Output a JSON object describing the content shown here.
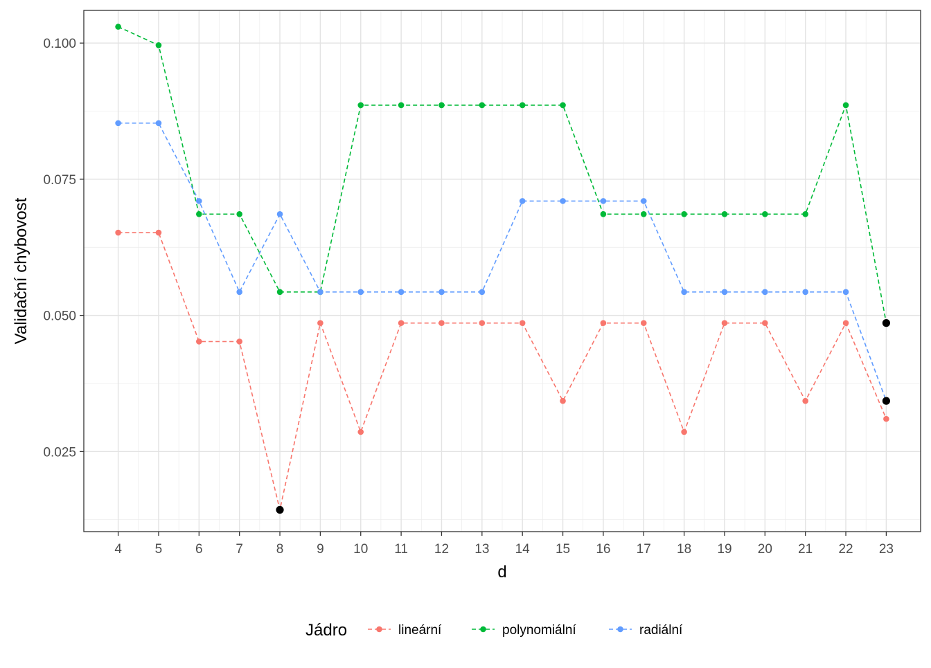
{
  "chart_data": {
    "type": "line",
    "title": "",
    "xlabel": "d",
    "ylabel": "Validační chybovost",
    "x": [
      4,
      5,
      6,
      7,
      8,
      9,
      10,
      11,
      12,
      13,
      14,
      15,
      16,
      17,
      18,
      19,
      20,
      21,
      22,
      23
    ],
    "xlim": [
      3.15,
      23.85
    ],
    "ylim": [
      0.0103,
      0.106
    ],
    "y_ticks": [
      0.025,
      0.05,
      0.075,
      0.1
    ],
    "y_tick_labels": [
      "0.025",
      "0.050",
      "0.075",
      "0.100"
    ],
    "grid": true,
    "legend_position": "bottom",
    "legend_title": "Jádro",
    "series": [
      {
        "name": "lineární",
        "color": "#F8766D",
        "values": [
          0.0652,
          0.0652,
          0.0452,
          0.0452,
          0.0143,
          0.0486,
          0.0286,
          0.0486,
          0.0486,
          0.0486,
          0.0486,
          0.0343,
          0.0486,
          0.0486,
          0.0286,
          0.0486,
          0.0486,
          0.0343,
          0.0486,
          0.031
        ]
      },
      {
        "name": "polynomiální",
        "color": "#00BA38",
        "values": [
          0.103,
          0.0996,
          0.0686,
          0.0686,
          0.0543,
          0.0543,
          0.0886,
          0.0886,
          0.0886,
          0.0886,
          0.0886,
          0.0886,
          0.0686,
          0.0686,
          0.0686,
          0.0686,
          0.0686,
          0.0686,
          0.0886,
          0.0486
        ]
      },
      {
        "name": "radiální",
        "color": "#619CFF",
        "values": [
          0.0853,
          0.0853,
          0.071,
          0.0543,
          0.0686,
          0.0543,
          0.0543,
          0.0543,
          0.0543,
          0.0543,
          0.071,
          0.071,
          0.071,
          0.071,
          0.0543,
          0.0543,
          0.0543,
          0.0543,
          0.0543,
          0.0343
        ]
      }
    ],
    "highlighted_points": [
      {
        "series": "lineární",
        "x": 8,
        "y": 0.0143
      },
      {
        "series": "polynomiální",
        "x": 23,
        "y": 0.0486
      },
      {
        "series": "radiální",
        "x": 23,
        "y": 0.0343
      }
    ],
    "highlight_color": "#000000"
  }
}
